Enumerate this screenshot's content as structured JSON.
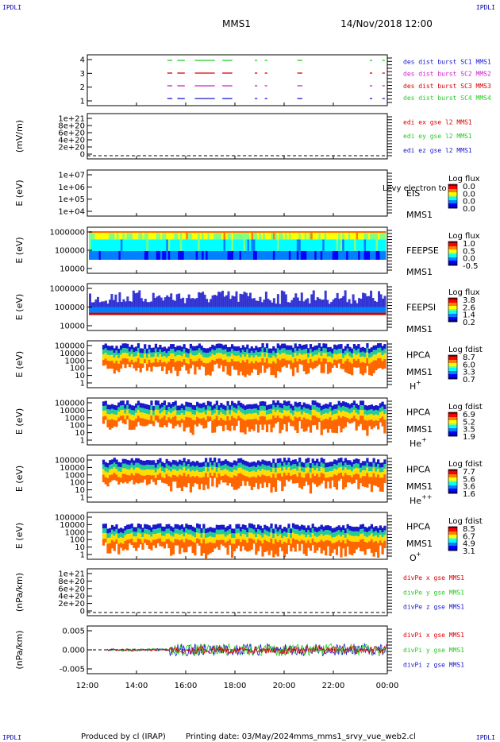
{
  "header": {
    "corner_label": "IPDLI",
    "spacecraft": "MMS1",
    "datetime": "14/Nov/2018 12:00"
  },
  "footer": {
    "produced_by": "Produced by cl (IRAP)",
    "printing_date": "Printing date: 03/May/2024",
    "script_name": "mms_mms1_srvy_vue_web2.cl"
  },
  "colors": {
    "blue": "#1a1acc",
    "red": "#dd0000",
    "green": "#22cc22",
    "magenta": "#cc22cc"
  },
  "chart_data": [
    {
      "type": "line",
      "title": "",
      "ylabel": "",
      "yticks": [
        "4",
        "3",
        "2",
        "1"
      ],
      "legend": [
        {
          "text": "des dist burst SC1 MMS1",
          "color": "#1a1acc"
        },
        {
          "text": "des dist burst SC2 MMS2",
          "color": "#cc22cc"
        },
        {
          "text": "des dist burst SC3 MMS3",
          "color": "#dd0000"
        },
        {
          "text": "des dist burst SC4 MMS4",
          "color": "#22cc22"
        }
      ]
    },
    {
      "type": "line",
      "ylabel": "(mV/m)",
      "yticks": [
        "1e+21",
        "8e+20",
        "6e+20",
        "4e+20",
        "2e+20",
        "0"
      ],
      "legend": [
        {
          "text": "edi ex gse l2 MMS1",
          "color": "#dd0000"
        },
        {
          "text": "edi ey gse l2 MMS1",
          "color": "#22cc22"
        },
        {
          "text": "edi ez gse l2 MMS1",
          "color": "#1a1acc"
        }
      ]
    },
    {
      "type": "heatmap",
      "ylabel": "E (eV)",
      "yticks": [
        "1e+07",
        "1e+06",
        "1e+05",
        "1e+04"
      ],
      "instrument": "EIS",
      "spacecraft": "MMS1",
      "overlay_text": "Levy electron to",
      "colorbar_title": "Log flux",
      "colorbar_ticks": [
        "0.0",
        "0.0",
        "0.0",
        "0.0"
      ]
    },
    {
      "type": "heatmap",
      "ylabel": "E (eV)",
      "yticks": [
        "1000000",
        "100000",
        "10000"
      ],
      "instrument": "FEEPSE",
      "spacecraft": "MMS1",
      "colorbar_title": "Log flux",
      "colorbar_ticks": [
        "1.0",
        "0.5",
        "0.0",
        "-0.5"
      ]
    },
    {
      "type": "heatmap",
      "ylabel": "E (eV)",
      "yticks": [
        "1000000",
        "100000",
        "10000"
      ],
      "instrument": "FEEPSI",
      "spacecraft": "MMS1",
      "colorbar_title": "Log flux",
      "colorbar_ticks": [
        "3.8",
        "2.6",
        "1.4",
        "0.2"
      ]
    },
    {
      "type": "heatmap",
      "ylabel": "E (eV)",
      "yticks": [
        "100000",
        "10000",
        "1000",
        "100",
        "10",
        "1"
      ],
      "instrument": "HPCA",
      "spacecraft": "MMS1",
      "species": "H",
      "charge": "+",
      "colorbar_title": "Log fdist",
      "colorbar_ticks": [
        "8.7",
        "6.0",
        "3.3",
        "0.7"
      ]
    },
    {
      "type": "heatmap",
      "ylabel": "E (eV)",
      "yticks": [
        "100000",
        "10000",
        "1000",
        "100",
        "10",
        "1"
      ],
      "instrument": "HPCA",
      "spacecraft": "MMS1",
      "species": "He",
      "charge": "+",
      "colorbar_title": "Log fdist",
      "colorbar_ticks": [
        "6.9",
        "5.2",
        "3.5",
        "1.9"
      ]
    },
    {
      "type": "heatmap",
      "ylabel": "E (eV)",
      "yticks": [
        "100000",
        "10000",
        "1000",
        "100",
        "10",
        "1"
      ],
      "instrument": "HPCA",
      "spacecraft": "MMS1",
      "species": "He",
      "charge": "++",
      "colorbar_title": "Log fdist",
      "colorbar_ticks": [
        "7.7",
        "5.6",
        "3.6",
        "1.6"
      ]
    },
    {
      "type": "heatmap",
      "ylabel": "E (eV)",
      "yticks": [
        "100000",
        "10000",
        "1000",
        "100",
        "10",
        "1"
      ],
      "instrument": "HPCA",
      "spacecraft": "MMS1",
      "species": "O",
      "charge": "+",
      "colorbar_title": "Log fdist",
      "colorbar_ticks": [
        "8.5",
        "6.7",
        "4.9",
        "3.1"
      ]
    },
    {
      "type": "line",
      "ylabel": "(nPa/km)",
      "yticks": [
        "1e+21",
        "8e+20",
        "6e+20",
        "4e+20",
        "2e+20",
        "0"
      ],
      "legend": [
        {
          "text": "divPe x gse MMS1",
          "color": "#dd0000"
        },
        {
          "text": "divPe y gse MMS1",
          "color": "#22cc22"
        },
        {
          "text": "divPe z gse MMS1",
          "color": "#1a1acc"
        }
      ]
    },
    {
      "type": "line",
      "ylabel": "(nPa/km)",
      "yticks": [
        "0.005",
        "0.000",
        "-0.005"
      ],
      "legend": [
        {
          "text": "divPi x gse MMS1",
          "color": "#dd0000"
        },
        {
          "text": "divPi y gse MMS1",
          "color": "#22cc22"
        },
        {
          "text": "divPi z gse MMS1",
          "color": "#1a1acc"
        }
      ]
    }
  ],
  "time_axis": {
    "labels": [
      "12:00",
      "14:00",
      "16:00",
      "18:00",
      "20:00",
      "22:00",
      "00:00"
    ]
  }
}
